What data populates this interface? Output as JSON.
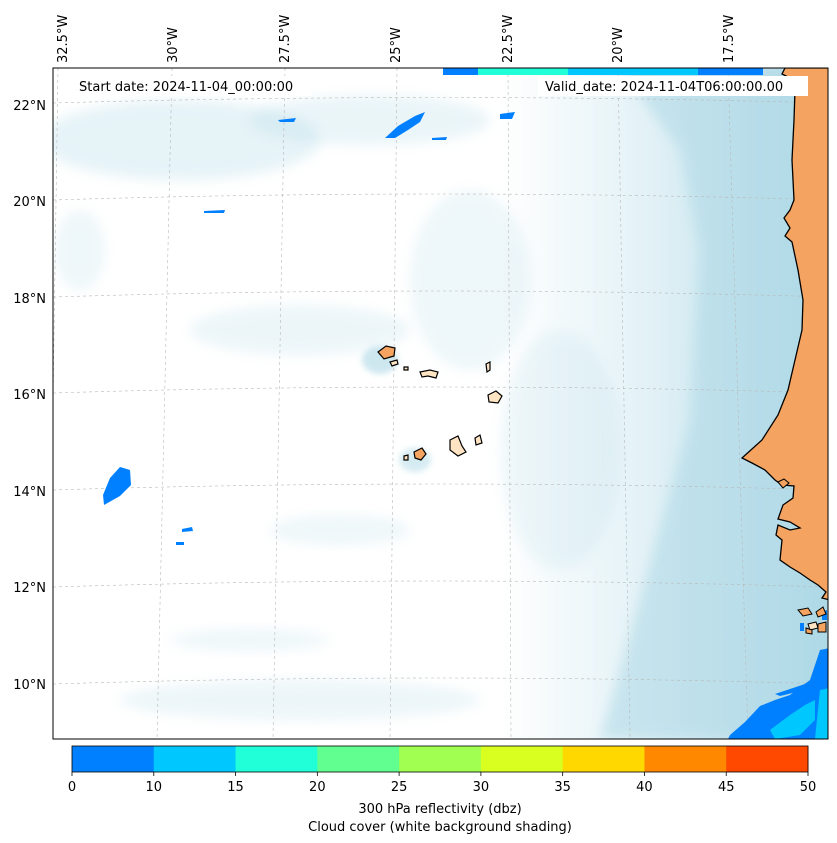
{
  "map": {
    "start_date_label": "Start date: 2024-11-04_00:00:00",
    "valid_date_label": "Valid_date: 2024-11-04T06:00:00.00",
    "lon_ticks": [
      "32.5°W",
      "30°W",
      "27.5°W",
      "25°W",
      "22.5°W",
      "20°W",
      "17.5°W"
    ],
    "lat_ticks": [
      "22°N",
      "20°N",
      "18°N",
      "16°N",
      "14°N",
      "12°N",
      "10°N"
    ],
    "colors": {
      "cloud": "#add8e6",
      "land": "#f4a460",
      "island_light": "#ffe4c4",
      "coast": "#000000",
      "grid": "#b0b0b0"
    }
  },
  "colorbar": {
    "label_line1": "300 hPa reflectivity (dbz)",
    "label_line2": "Cloud cover (white background shading)",
    "ticks": [
      "0",
      "10",
      "15",
      "20",
      "25",
      "30",
      "35",
      "40",
      "45",
      "50"
    ],
    "colors": [
      "#0080ff",
      "#00c8ff",
      "#20ffd8",
      "#60ff90",
      "#a0ff50",
      "#d8ff20",
      "#ffd800",
      "#ff8800",
      "#ff4800"
    ]
  }
}
